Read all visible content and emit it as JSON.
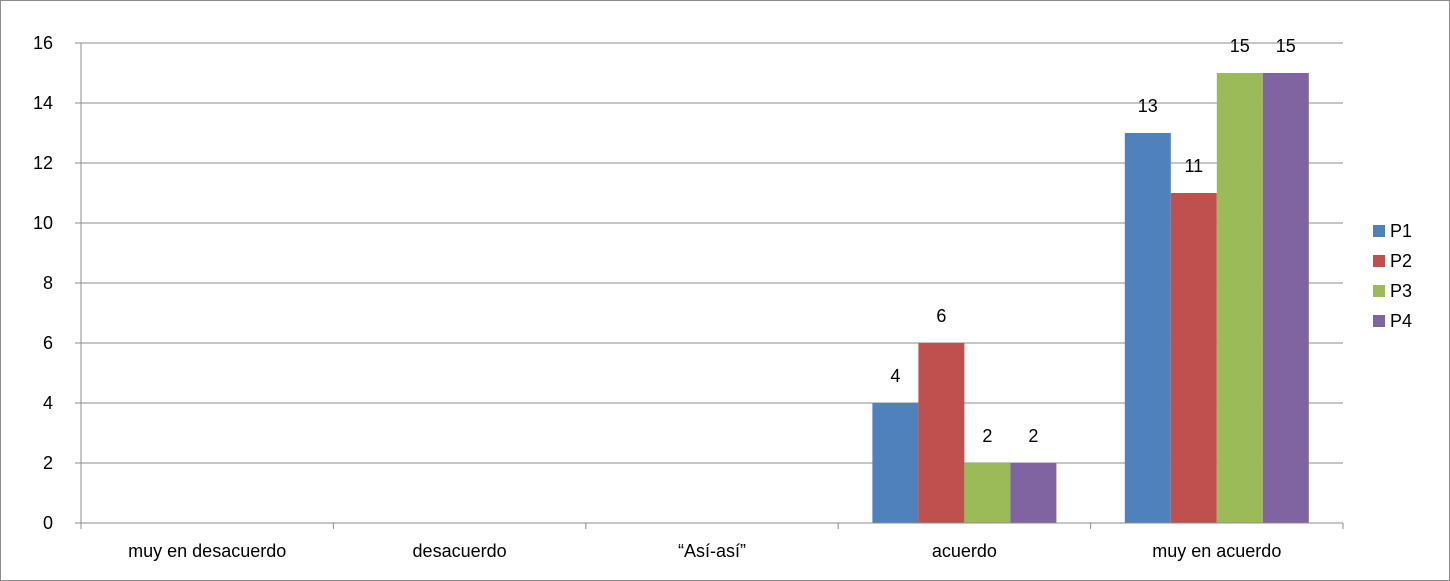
{
  "chart_data": {
    "type": "bar",
    "categories": [
      "muy en desacuerdo",
      "desacuerdo",
      "“Así-así”",
      "acuerdo",
      "muy en acuerdo"
    ],
    "series": [
      {
        "name": "P1",
        "color": "#4F81BD",
        "values": [
          0,
          0,
          0,
          4,
          13
        ]
      },
      {
        "name": "P2",
        "color": "#C0504D",
        "values": [
          0,
          0,
          0,
          6,
          11
        ]
      },
      {
        "name": "P3",
        "color": "#9BBB59",
        "values": [
          0,
          0,
          0,
          2,
          15
        ]
      },
      {
        "name": "P4",
        "color": "#8064A2",
        "values": [
          0,
          0,
          0,
          2,
          15
        ]
      }
    ],
    "ylim": [
      0,
      16
    ],
    "yticks": [
      0,
      2,
      4,
      6,
      8,
      10,
      12,
      14,
      16
    ],
    "grid": true,
    "legend": "right",
    "data_labels": true
  }
}
